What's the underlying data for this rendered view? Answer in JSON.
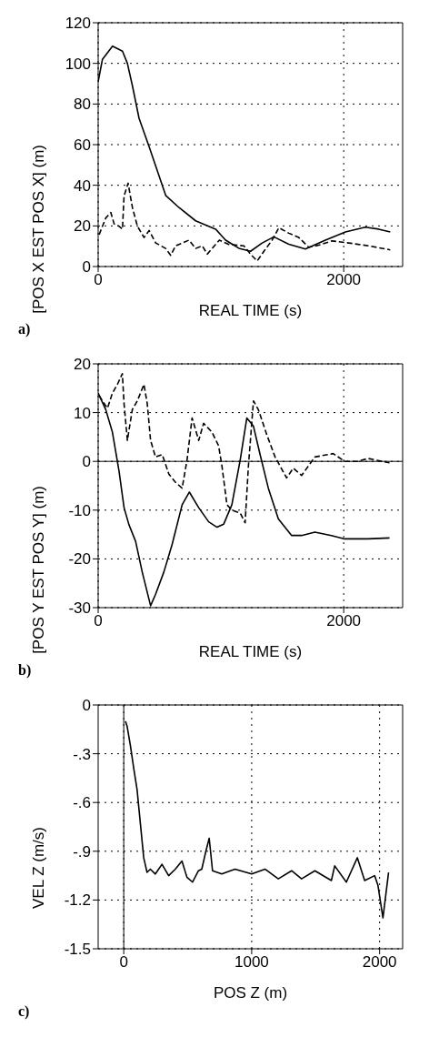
{
  "chart_data": [
    {
      "type": "line",
      "xlabel": "REAL TIME (s)",
      "ylabel": "[POS X  EST POS X] (m)",
      "annotations": [
        "a)"
      ],
      "xlim": [
        0,
        2480
      ],
      "xticks": [
        0,
        2000
      ],
      "ylim": [
        0,
        120
      ],
      "yticks": [
        0,
        20,
        40,
        60,
        80,
        100,
        120
      ],
      "grid": true,
      "series": [
        {
          "color": "#000000",
          "line_style": "solid",
          "x": [
            0,
            35,
            117,
            198,
            238,
            279,
            333,
            415,
            550,
            659,
            794,
            957,
            1038,
            1146,
            1241,
            1336,
            1431,
            1553,
            1688,
            1851,
            2014,
            2176,
            2285,
            2379
          ],
          "values": [
            91,
            102,
            108.5,
            106,
            100,
            89,
            73,
            59,
            35,
            29,
            22.5,
            18.4,
            13,
            9,
            7.5,
            11.6,
            14.6,
            11,
            8.6,
            13,
            17,
            19.4,
            18.4,
            17
          ]
        },
        {
          "color": "#000000",
          "line_style": "dashed",
          "x": [
            8,
            35,
            62,
            103,
            130,
            171,
            198,
            211,
            244,
            279,
            320,
            374,
            415,
            469,
            550,
            591,
            631,
            740,
            794,
            848,
            889,
            987,
            1065,
            1187,
            1241,
            1295,
            1350,
            1417,
            1472,
            1553,
            1634,
            1715,
            1797,
            1905,
            2041,
            2203,
            2379
          ],
          "values": [
            15.7,
            19.8,
            23.9,
            26.6,
            21,
            19.8,
            18.4,
            34.8,
            41,
            29,
            19.8,
            14.3,
            17.7,
            11.6,
            8.9,
            5.5,
            10.2,
            13,
            8.9,
            10.2,
            6.1,
            13,
            10.9,
            10.2,
            6.1,
            2.7,
            7.5,
            13,
            19.1,
            16.4,
            14.3,
            9.5,
            10.5,
            12.6,
            11.6,
            10.2,
            8.2
          ]
        }
      ]
    },
    {
      "type": "line",
      "xlabel": "REAL TIME (s)",
      "ylabel": "[POS Y  EST POS Y] (m)",
      "annotations": [
        "b)"
      ],
      "xlim": [
        0,
        2480
      ],
      "xticks": [
        0,
        2000
      ],
      "ylim": [
        -30,
        20
      ],
      "yticks": [
        -30,
        -20,
        -10,
        0,
        10,
        20
      ],
      "grid": true,
      "ref_lines": [
        {
          "axis": "y",
          "value": 0,
          "label": null,
          "color": "#000000",
          "line_style": "solid"
        }
      ],
      "series": [
        {
          "color": "#000000",
          "line_style": "solid",
          "x": [
            0,
            62,
            116,
            170,
            211,
            251,
            305,
            359,
            427,
            467,
            535,
            603,
            684,
            743,
            819,
            900,
            968,
            1022,
            1089,
            1157,
            1211,
            1265,
            1319,
            1386,
            1468,
            1576,
            1657,
            1765,
            1900,
            2008,
            2197,
            2373
          ],
          "values": [
            14,
            10.6,
            6,
            -2,
            -9.5,
            -13,
            -16.4,
            -22.7,
            -29.6,
            -27.3,
            -22.7,
            -17,
            -8.9,
            -6.3,
            -9.5,
            -12.4,
            -13.5,
            -12.9,
            -8.9,
            0.3,
            8.9,
            7.2,
            1.4,
            -5.5,
            -11.8,
            -15.2,
            -15.2,
            -14.5,
            -15.2,
            -15.9,
            -15.9,
            -15.7
          ]
        },
        {
          "color": "#000000",
          "line_style": "dashed",
          "x": [
            8,
            35,
            76,
            116,
            157,
            197,
            211,
            238,
            278,
            319,
            373,
            400,
            427,
            467,
            522,
            576,
            630,
            684,
            724,
            765,
            819,
            859,
            927,
            981,
            1008,
            1049,
            1089,
            1157,
            1197,
            1224,
            1265,
            1305,
            1373,
            1441,
            1535,
            1589,
            1657,
            1765,
            1914,
            2008,
            2116,
            2197,
            2373
          ],
          "values": [
            13.5,
            12.4,
            10.9,
            14,
            15.8,
            18,
            11.8,
            4.3,
            10.6,
            12.4,
            15.8,
            11.8,
            4.3,
            0.9,
            1.4,
            -2.6,
            -4.3,
            -5.5,
            0.3,
            8.9,
            4.3,
            7.8,
            6,
            3.2,
            -0.9,
            -8.9,
            -10,
            -10.6,
            -12.6,
            -0.9,
            12.4,
            10.6,
            5.5,
            0.9,
            -3.4,
            -1.4,
            -2.9,
            0.9,
            1.6,
            0,
            0,
            0.6,
            -0.3
          ]
        }
      ]
    },
    {
      "type": "line",
      "xlabel": "POS Z (m)",
      "ylabel": "VEL Z (m/s)",
      "annotations": [
        "c)"
      ],
      "xlim": [
        -200,
        2180
      ],
      "xticks": [
        0,
        1000,
        2000
      ],
      "ylim": [
        -1.5,
        0
      ],
      "yticks": [
        {
          "value": -1.5,
          "label": "-1.5"
        },
        {
          "value": -1.2,
          "label": "-1.2"
        },
        {
          "value": -0.9,
          "label": "-.9"
        },
        {
          "value": -0.6,
          "label": "-.6"
        },
        {
          "value": -0.3,
          "label": "-.3"
        },
        0
      ],
      "grid": true,
      "ref_lines": [
        {
          "axis": "x",
          "value": 0,
          "label": null,
          "color": "#000000",
          "line_style": "solid"
        }
      ],
      "series": [
        {
          "color": "#000000",
          "line_style": "solid",
          "x": [
            13,
            26,
            52,
            78,
            104,
            130,
            156,
            182,
            208,
            247,
            299,
            351,
            403,
            455,
            494,
            538,
            584,
            610,
            642,
            668,
            694,
            766,
            870,
            1000,
            1104,
            1208,
            1312,
            1390,
            1494,
            1623,
            1649,
            1740,
            1826,
            1883,
            1961,
            1987,
            2026,
            2070
          ],
          "values": [
            -0.1,
            -0.13,
            -0.25,
            -0.39,
            -0.52,
            -0.73,
            -0.94,
            -1.03,
            -1.01,
            -1.04,
            -0.98,
            -1.05,
            -1.01,
            -0.96,
            -1.06,
            -1.09,
            -1.02,
            -1.01,
            -0.9,
            -0.82,
            -1.02,
            -1.04,
            -1.01,
            -1.04,
            -1.01,
            -1.07,
            -1.02,
            -1.07,
            -1.02,
            -1.08,
            -0.99,
            -1.09,
            -0.94,
            -1.08,
            -1.05,
            -1.11,
            -1.31,
            -1.03
          ]
        }
      ]
    }
  ]
}
